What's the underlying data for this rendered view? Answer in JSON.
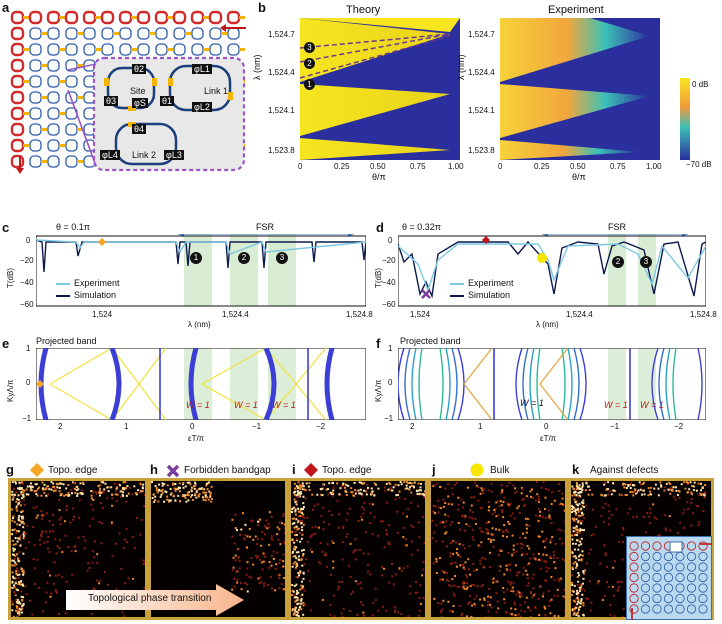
{
  "panels": {
    "a": "a",
    "b": "b",
    "c": "c",
    "d": "d",
    "e": "e",
    "f": "f",
    "g": "g",
    "h": "h",
    "i": "i",
    "j": "j",
    "k": "k"
  },
  "panel_a": {
    "site_label": "Site",
    "link1_label": "Link 1",
    "link2_label": "Link 2",
    "phases": [
      "θ2",
      "θ3",
      "φS",
      "θ1",
      "θ4",
      "φL1",
      "φL2",
      "φL4",
      "φL3"
    ]
  },
  "panel_b": {
    "theory_title": "Theory",
    "experiment_title": "Experiment",
    "ylabel": "λ (nm)",
    "xlabel": "θ/π",
    "yticks": [
      "1,524.7",
      "1,524.4",
      "1,524.1",
      "1,523.8"
    ],
    "xticks": [
      "0",
      "0.25",
      "0.50",
      "0.75",
      "1.00"
    ],
    "markers": [
      "3",
      "2",
      "1"
    ],
    "colorbar_top": "0 dB",
    "colorbar_bottom": "−70 dB"
  },
  "panel_c": {
    "theta": "θ = 0.1π",
    "fsr": "FSR",
    "ylabel": "T(dB)",
    "yticks": [
      "0",
      "−20",
      "−40",
      "−60"
    ],
    "xticks": [
      "1,524",
      "1,524.4",
      "1,524.8"
    ],
    "xlabel": "λ (nm)",
    "legend_experiment": "Experiment",
    "legend_simulation": "Simulation",
    "markers": [
      "1",
      "2",
      "3"
    ]
  },
  "panel_d": {
    "theta": "θ = 0.32π",
    "fsr": "FSR",
    "ylabel": "T(dB)",
    "yticks": [
      "0",
      "−20",
      "−40",
      "−60"
    ],
    "xticks": [
      "1,524",
      "1,524.4",
      "1,524.8"
    ],
    "xlabel": "λ (nm)",
    "legend_experiment": "Experiment",
    "legend_simulation": "Simulation",
    "markers": [
      "2",
      "3"
    ]
  },
  "panel_e": {
    "title": "Projected band",
    "ylabel": "KyΛ/π",
    "yticks": [
      "1",
      "0",
      "−1"
    ],
    "xticks": [
      "2",
      "1",
      "0",
      "−1",
      "−2"
    ],
    "xlabel": "εT/π",
    "winding": [
      "W = 1",
      "W = 1",
      "W = 1"
    ]
  },
  "panel_f": {
    "title": "Projected band",
    "ylabel": "KyΛ/π",
    "yticks": [
      "1",
      "0",
      "−1"
    ],
    "xticks": [
      "2",
      "1",
      "0",
      "−1",
      "−2"
    ],
    "xlabel": "εT/π",
    "winding": [
      "W = 1",
      "W = 1",
      "W = 1"
    ]
  },
  "bottom": {
    "g_label": "Topo. edge",
    "h_label": "Forbidden bandgap",
    "i_label": "Topo. edge",
    "j_label": "Bulk",
    "k_label": "Against defects",
    "arrow_text": "Topological phase transition"
  },
  "colors": {
    "experiment": "#7ec8e3",
    "simulation": "#0d1b4c",
    "band": "#3c3fd6",
    "edge_state": "#f2e34a",
    "highlight": "#d8ecd3",
    "orange_diamond": "#f5a623",
    "purple_x": "#7b3fa0",
    "red_diamond": "#c0151a",
    "yellow_dot": "#f7e600",
    "frame": "#c8a13a"
  }
}
